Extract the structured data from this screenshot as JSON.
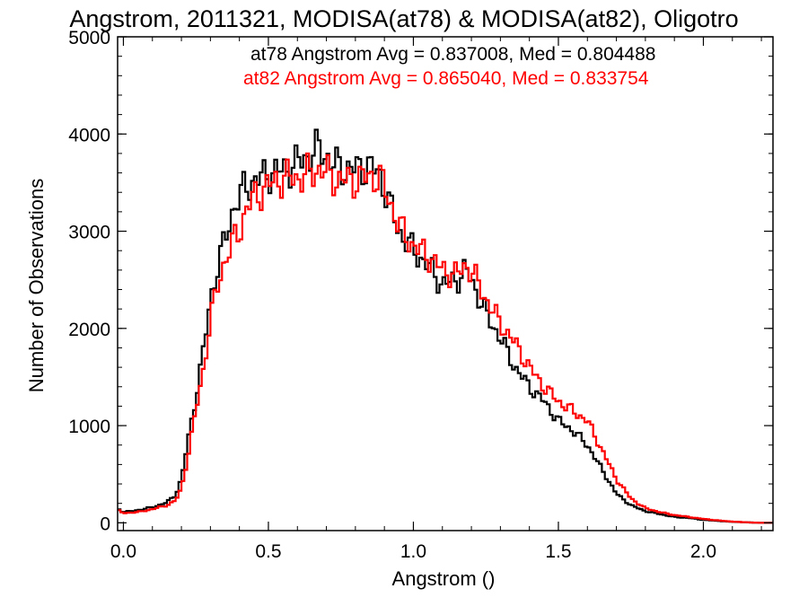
{
  "chart_data": {
    "type": "line",
    "title": "Angstrom, 2011321, MODISA(at78) & MODISA(at82), Oligotro",
    "xlabel": "Angstrom ()",
    "ylabel": "Number of Observations",
    "xlim": [
      -0.02,
      2.24
    ],
    "ylim": [
      -80,
      5000
    ],
    "xticks": [
      "0.0",
      "0.5",
      "1.0",
      "1.5",
      "2.0"
    ],
    "yticks": [
      "0",
      "1000",
      "2000",
      "3000",
      "4000",
      "5000"
    ],
    "step": true,
    "annotations": [
      {
        "text": "at78 Angstrom Avg = 0.837008, Med = 0.804488",
        "color": "#000000"
      },
      {
        "text": "at82 Angstrom Avg = 0.865040, Med = 0.833754",
        "color": "#ff0000"
      }
    ],
    "series": [
      {
        "color": "#000000",
        "x": [
          -0.02,
          0.0,
          0.05,
          0.1,
          0.15,
          0.18,
          0.2,
          0.22,
          0.25,
          0.28,
          0.3,
          0.33,
          0.35,
          0.38,
          0.4,
          0.42,
          0.45,
          0.48,
          0.5,
          0.55,
          0.6,
          0.65,
          0.68,
          0.7,
          0.72,
          0.75,
          0.8,
          0.85,
          0.88,
          0.9,
          0.92,
          0.95,
          1.0,
          1.05,
          1.1,
          1.15,
          1.18,
          1.2,
          1.25,
          1.3,
          1.35,
          1.4,
          1.45,
          1.5,
          1.55,
          1.6,
          1.65,
          1.7,
          1.75,
          1.8,
          1.85,
          1.9,
          1.95,
          2.0,
          2.05,
          2.1,
          2.15,
          2.2,
          2.24
        ],
        "y": [
          150,
          110,
          130,
          160,
          210,
          290,
          450,
          800,
          1300,
          1850,
          2300,
          2700,
          2900,
          3250,
          3350,
          3450,
          3520,
          3550,
          3600,
          3620,
          3700,
          3800,
          3850,
          3780,
          3700,
          3650,
          3640,
          3660,
          3600,
          3450,
          3250,
          3000,
          2800,
          2650,
          2450,
          2500,
          2600,
          2500,
          2150,
          1900,
          1600,
          1400,
          1250,
          1050,
          950,
          800,
          550,
          300,
          180,
          120,
          90,
          60,
          50,
          30,
          20,
          10,
          5,
          0,
          0
        ]
      },
      {
        "color": "#ff0000",
        "x": [
          -0.02,
          0.0,
          0.05,
          0.1,
          0.15,
          0.18,
          0.2,
          0.22,
          0.25,
          0.28,
          0.3,
          0.33,
          0.35,
          0.38,
          0.4,
          0.42,
          0.45,
          0.48,
          0.5,
          0.55,
          0.6,
          0.65,
          0.68,
          0.7,
          0.72,
          0.75,
          0.8,
          0.85,
          0.88,
          0.9,
          0.92,
          0.95,
          1.0,
          1.05,
          1.1,
          1.15,
          1.18,
          1.2,
          1.25,
          1.3,
          1.35,
          1.4,
          1.45,
          1.5,
          1.55,
          1.6,
          1.65,
          1.7,
          1.75,
          1.8,
          1.85,
          1.9,
          1.95,
          2.0,
          2.05,
          2.1,
          2.15,
          2.2,
          2.24
        ],
        "y": [
          130,
          100,
          110,
          140,
          180,
          230,
          350,
          650,
          1150,
          1650,
          2100,
          2500,
          2700,
          2900,
          3000,
          3200,
          3350,
          3420,
          3470,
          3550,
          3550,
          3600,
          3650,
          3600,
          3560,
          3520,
          3530,
          3560,
          3560,
          3450,
          3300,
          3050,
          2850,
          2750,
          2600,
          2550,
          2650,
          2600,
          2300,
          2050,
          1850,
          1600,
          1400,
          1250,
          1150,
          1050,
          750,
          450,
          250,
          150,
          110,
          80,
          60,
          40,
          25,
          12,
          5,
          0,
          0
        ]
      }
    ]
  }
}
